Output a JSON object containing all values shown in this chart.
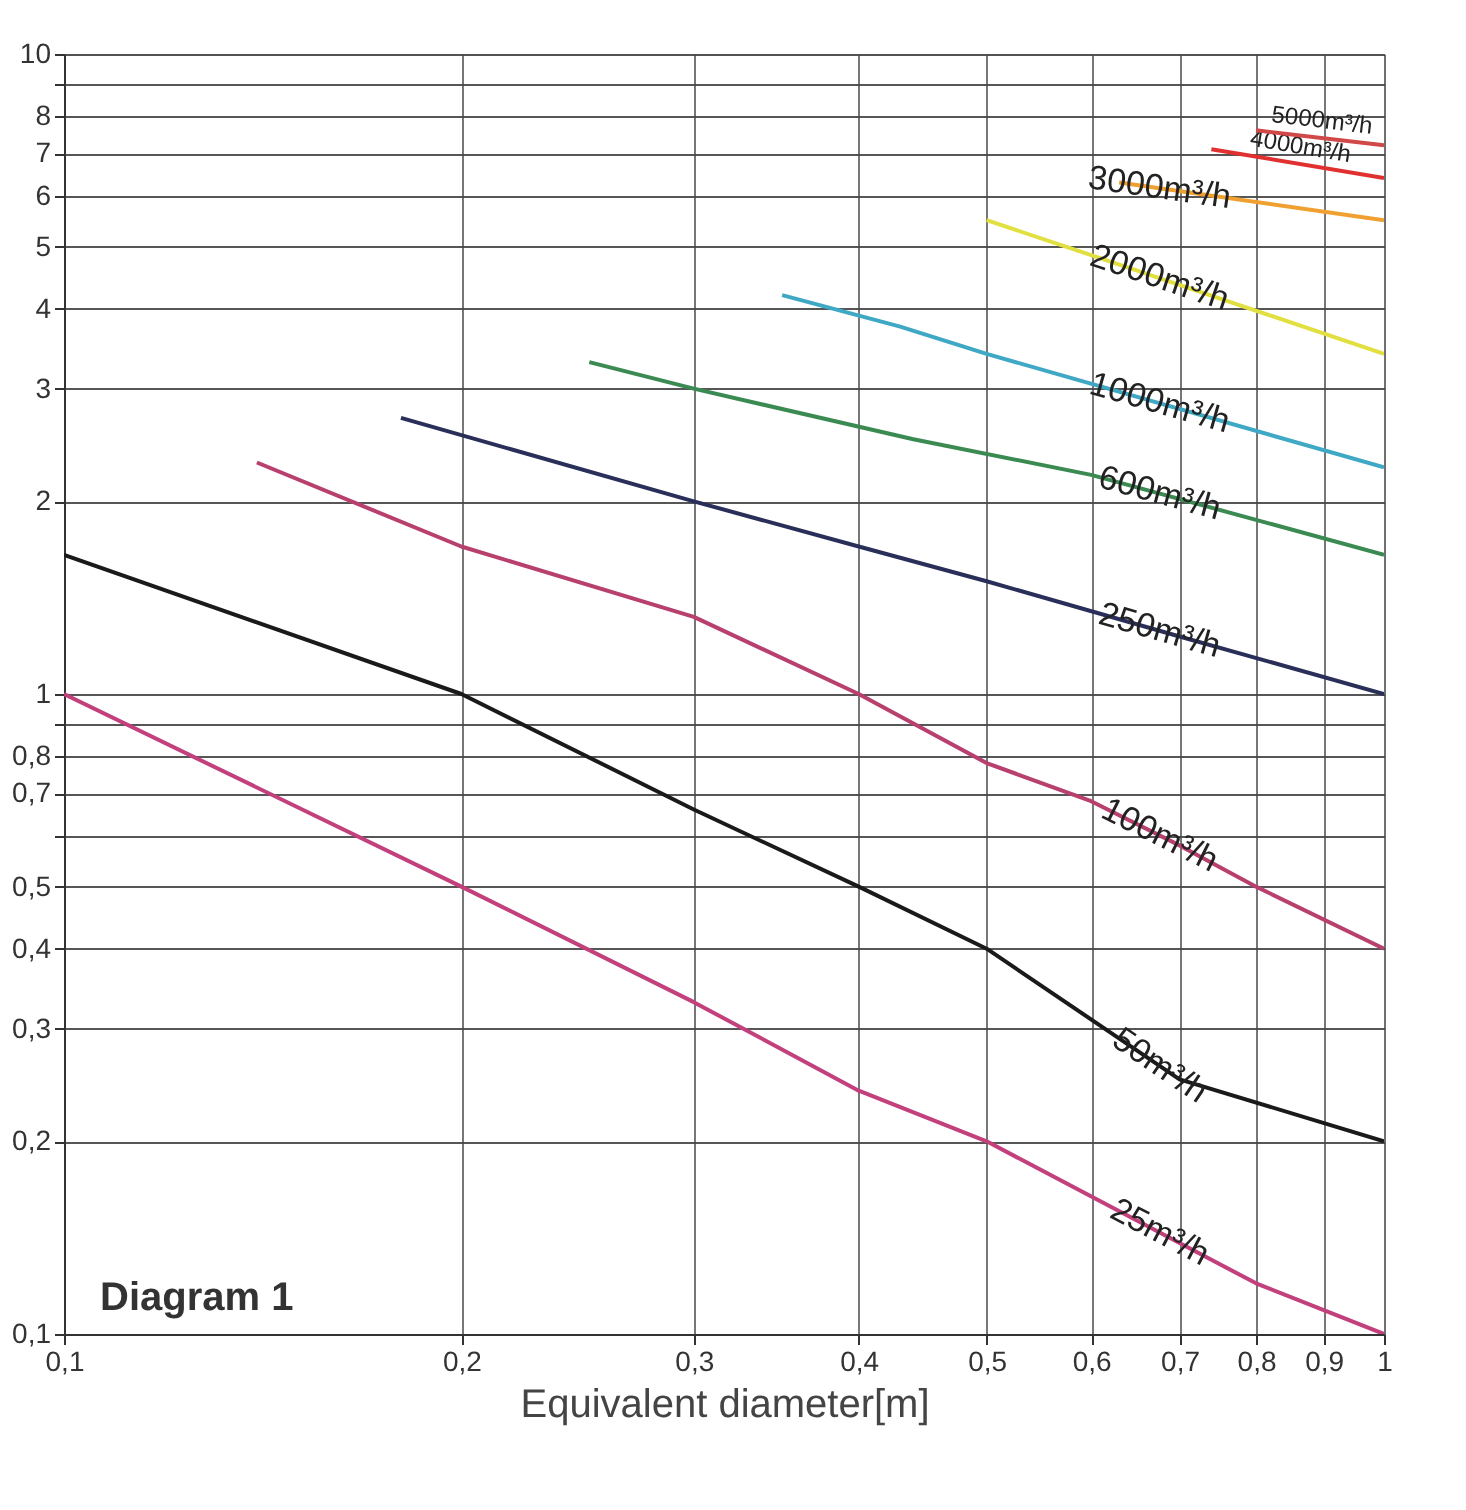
{
  "chart_data": {
    "type": "line",
    "xlabel": "Equivalent diameter[m]",
    "log": "xy",
    "grid": true,
    "xlim": [
      0.1,
      1
    ],
    "ylim": [
      0.1,
      10
    ],
    "xticks": [
      {
        "value": 0.1,
        "label": "0,1"
      },
      {
        "value": 0.2,
        "label": "0,2"
      },
      {
        "value": 0.3,
        "label": "0,3"
      },
      {
        "value": 0.4,
        "label": "0,4"
      },
      {
        "value": 0.5,
        "label": "0,5"
      },
      {
        "value": 0.6,
        "label": "0,6"
      },
      {
        "value": 0.7,
        "label": "0,7"
      },
      {
        "value": 0.8,
        "label": "0,8"
      },
      {
        "value": 0.9,
        "label": "0,9"
      },
      1
    ],
    "yticks": [
      {
        "value": 0.1,
        "label": "0,1"
      },
      {
        "value": 0.2,
        "label": "0,2"
      },
      {
        "value": 0.3,
        "label": "0,3"
      },
      {
        "value": 0.4,
        "label": "0,4"
      },
      {
        "value": 0.5,
        "label": "0,5"
      },
      {
        "value": 0.6,
        "label": null
      },
      {
        "value": 0.7,
        "label": "0,7"
      },
      {
        "value": 0.8,
        "label": "0,8"
      },
      {
        "value": 0.9,
        "label": null
      },
      1,
      2,
      3,
      4,
      5,
      6,
      7,
      8,
      {
        "value": 9,
        "label": null
      },
      10
    ],
    "series": [
      {
        "name": "25m³/h",
        "color": "#c2407c",
        "x": [
          0.1,
          0.2,
          0.3,
          0.4,
          0.5,
          0.8,
          1
        ],
        "values": [
          1.0,
          0.5,
          0.33,
          0.24,
          0.2,
          0.12,
          0.1
        ]
      },
      {
        "name": "50m³/h",
        "color": "#1a1a1a",
        "x": [
          0.1,
          0.2,
          0.3,
          0.4,
          0.5,
          0.7,
          1
        ],
        "values": [
          1.65,
          1.0,
          0.66,
          0.5,
          0.4,
          0.25,
          0.2
        ]
      },
      {
        "name": "100m³/h",
        "color": "#b8406e",
        "x": [
          0.14,
          0.2,
          0.3,
          0.4,
          0.5,
          0.6,
          0.7,
          0.8,
          1
        ],
        "values": [
          2.3,
          1.7,
          1.32,
          1.0,
          0.78,
          0.68,
          0.58,
          0.5,
          0.4
        ]
      },
      {
        "name": "250m³/h",
        "color": "#2a2f5a",
        "x": [
          0.18,
          0.3,
          0.4,
          0.5,
          0.7,
          1
        ],
        "values": [
          2.7,
          2.0,
          1.7,
          1.5,
          1.23,
          1.0
        ]
      },
      {
        "name": "600m³/h",
        "color": "#3a8a52",
        "x": [
          0.25,
          0.3,
          0.44,
          0.6,
          1
        ],
        "values": [
          3.3,
          3.0,
          2.5,
          2.2,
          1.65
        ]
      },
      {
        "name": "1000m³/h",
        "color": "#3fa8c4",
        "x": [
          0.35,
          0.43,
          0.5,
          1
        ],
        "values": [
          4.2,
          3.75,
          3.4,
          2.26
        ]
      },
      {
        "name": "2000m³/h",
        "color": "#e2e040",
        "x": [
          0.5,
          0.6,
          1
        ],
        "values": [
          5.5,
          4.85,
          3.4
        ]
      },
      {
        "name": "3000m³/h",
        "color": "#f0a030",
        "x": [
          0.63,
          1
        ],
        "values": [
          6.3,
          5.5
        ]
      },
      {
        "name": "4000m³/h",
        "color": "#e03030",
        "x": [
          0.74,
          1
        ],
        "values": [
          7.1,
          6.4
        ]
      },
      {
        "name": "5000m³/h",
        "color": "#d04848",
        "x": [
          0.8,
          1
        ],
        "values": [
          7.6,
          7.2
        ]
      }
    ],
    "annotations": [
      "Diagram 1"
    ]
  }
}
